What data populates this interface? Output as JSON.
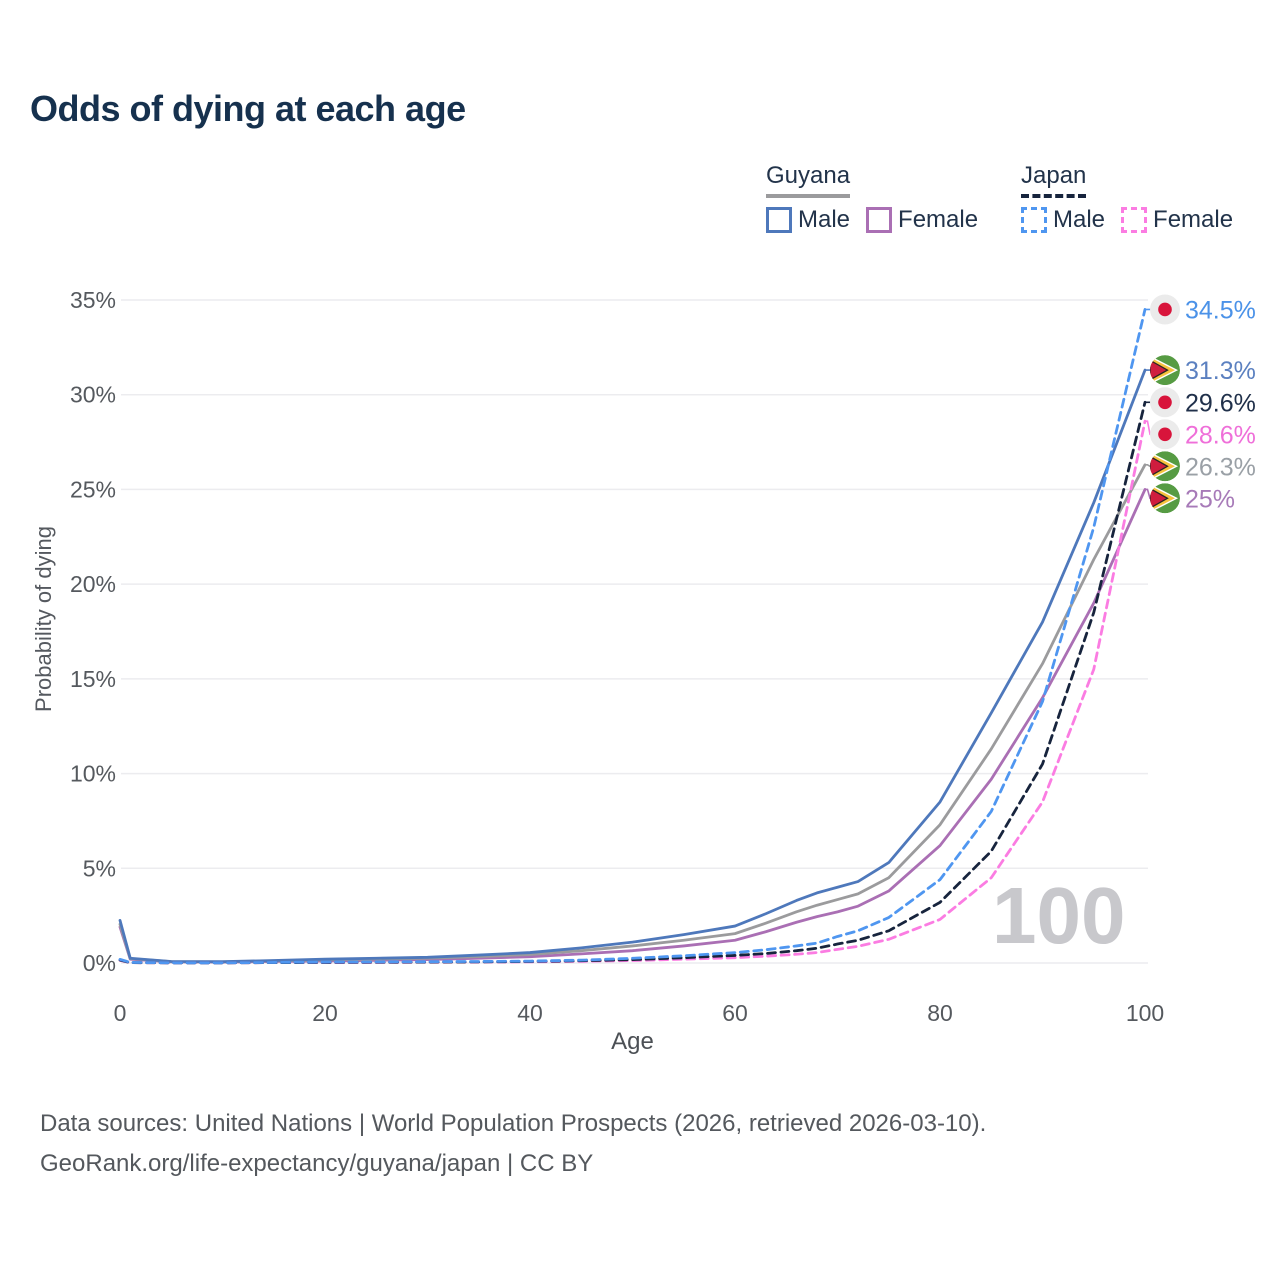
{
  "title": "Odds of dying at each age",
  "legend": {
    "groups": [
      {
        "country": "Guyana",
        "line_style": "solid",
        "underline_color": "#9b9b9d",
        "items": [
          {
            "label": "Male",
            "color": "#4e78bb"
          },
          {
            "label": "Female",
            "color": "#aa6fb4"
          }
        ]
      },
      {
        "country": "Japan",
        "line_style": "dashed",
        "underline_color": "#17243d",
        "items": [
          {
            "label": "Male",
            "color": "#4f96f0"
          },
          {
            "label": "Female",
            "color": "#fb7ce2"
          }
        ]
      }
    ]
  },
  "axes": {
    "y_title": "Probability of dying",
    "x_title": "Age",
    "y_ticks": [
      "0%",
      "5%",
      "10%",
      "15%",
      "20%",
      "25%",
      "30%",
      "35%"
    ],
    "y_tick_values": [
      0,
      5,
      10,
      15,
      20,
      25,
      30,
      35
    ],
    "x_tick_values": [
      0,
      20,
      40,
      60,
      80,
      100
    ],
    "x_range": [
      0,
      100
    ],
    "y_range": [
      0,
      35
    ]
  },
  "watermark": "100",
  "icons": {
    "japan_flag": {
      "bg": "#ebebeb",
      "dot": "#d8143b"
    },
    "guyana_flag": {
      "green": "#569b43",
      "yellow": "#f6c23d",
      "red": "#cf1d3e",
      "outline": "#2a2523",
      "white": "#ffffff"
    }
  },
  "chart_data": {
    "type": "line",
    "title": "Odds of dying at each age",
    "xlabel": "Age",
    "ylabel": "Probability of dying",
    "xlim": [
      0,
      100
    ],
    "ylim": [
      0,
      35
    ],
    "grid": "horizontal",
    "x": [
      0,
      1,
      5,
      10,
      15,
      20,
      25,
      30,
      35,
      40,
      45,
      50,
      55,
      60,
      63,
      66,
      68,
      70,
      72,
      75,
      80,
      85,
      90,
      95,
      100
    ],
    "series": [
      {
        "id": "guyana-female",
        "name": "Guyana Female",
        "country": "Guyana",
        "sex": "female",
        "color": "#aa6fb4",
        "dashed": false,
        "flag": "guyana",
        "end_label": "25%",
        "label_color": "#a77ab8",
        "values": [
          1.9,
          0.2,
          0.06,
          0.05,
          0.08,
          0.11,
          0.14,
          0.18,
          0.25,
          0.33,
          0.48,
          0.65,
          0.9,
          1.2,
          1.65,
          2.15,
          2.45,
          2.7,
          3.0,
          3.8,
          6.2,
          9.7,
          14.0,
          19.0,
          25.0
        ]
      },
      {
        "id": "guyana-both",
        "name": "Guyana Both sexes",
        "country": "Guyana",
        "sex": "both",
        "color": "#9b9b9d",
        "dashed": false,
        "flag": "guyana",
        "end_label": "26.3%",
        "label_color": "#9aa0a6",
        "values": [
          2.05,
          0.23,
          0.07,
          0.06,
          0.11,
          0.16,
          0.21,
          0.25,
          0.34,
          0.45,
          0.65,
          0.9,
          1.2,
          1.55,
          2.1,
          2.7,
          3.05,
          3.35,
          3.65,
          4.5,
          7.3,
          11.3,
          15.8,
          21.3,
          26.3
        ]
      },
      {
        "id": "guyana-male",
        "name": "Guyana Male",
        "country": "Guyana",
        "sex": "male",
        "color": "#4e78bb",
        "dashed": false,
        "flag": "guyana",
        "end_label": "31.3%",
        "label_color": "#5b80c0",
        "values": [
          2.25,
          0.25,
          0.08,
          0.07,
          0.13,
          0.2,
          0.25,
          0.3,
          0.42,
          0.55,
          0.8,
          1.1,
          1.5,
          1.95,
          2.6,
          3.3,
          3.7,
          4.0,
          4.3,
          5.3,
          8.5,
          13.2,
          18.0,
          24.3,
          31.3
        ]
      },
      {
        "id": "japan-female",
        "name": "Japan Female",
        "country": "Japan",
        "sex": "female",
        "color": "#fb7ce2",
        "dashed": true,
        "flag": "japan",
        "end_label": "28.6%",
        "label_color": "#ef6fd9",
        "values": [
          0.14,
          0.02,
          0.01,
          0.01,
          0.02,
          0.02,
          0.03,
          0.04,
          0.05,
          0.06,
          0.09,
          0.13,
          0.2,
          0.28,
          0.36,
          0.46,
          0.55,
          0.72,
          0.88,
          1.25,
          2.3,
          4.5,
          8.5,
          15.5,
          28.6
        ]
      },
      {
        "id": "japan-both",
        "name": "Japan Both sexes",
        "country": "Japan",
        "sex": "both",
        "color": "#17243d",
        "dashed": true,
        "flag": "japan",
        "end_label": "29.6%",
        "label_color": "#20304a",
        "values": [
          0.16,
          0.02,
          0.01,
          0.01,
          0.02,
          0.03,
          0.04,
          0.05,
          0.06,
          0.08,
          0.12,
          0.18,
          0.28,
          0.4,
          0.5,
          0.65,
          0.78,
          1.0,
          1.2,
          1.7,
          3.2,
          5.9,
          10.5,
          18.5,
          29.6
        ]
      },
      {
        "id": "japan-male",
        "name": "Japan Male",
        "country": "Japan",
        "sex": "male",
        "color": "#4f96f0",
        "dashed": true,
        "flag": "japan",
        "end_label": "34.5%",
        "label_color": "#4b92e8",
        "values": [
          0.19,
          0.03,
          0.01,
          0.01,
          0.03,
          0.05,
          0.06,
          0.07,
          0.08,
          0.1,
          0.15,
          0.25,
          0.38,
          0.55,
          0.7,
          0.9,
          1.05,
          1.4,
          1.7,
          2.4,
          4.4,
          8.0,
          13.8,
          23.0,
          34.5
        ]
      }
    ]
  },
  "footer": {
    "line1": "Data sources: United Nations | World Population Prospects (2026, retrieved 2026-03-10).",
    "line2": "GeoRank.org/life-expectancy/guyana/japan | CC BY"
  }
}
